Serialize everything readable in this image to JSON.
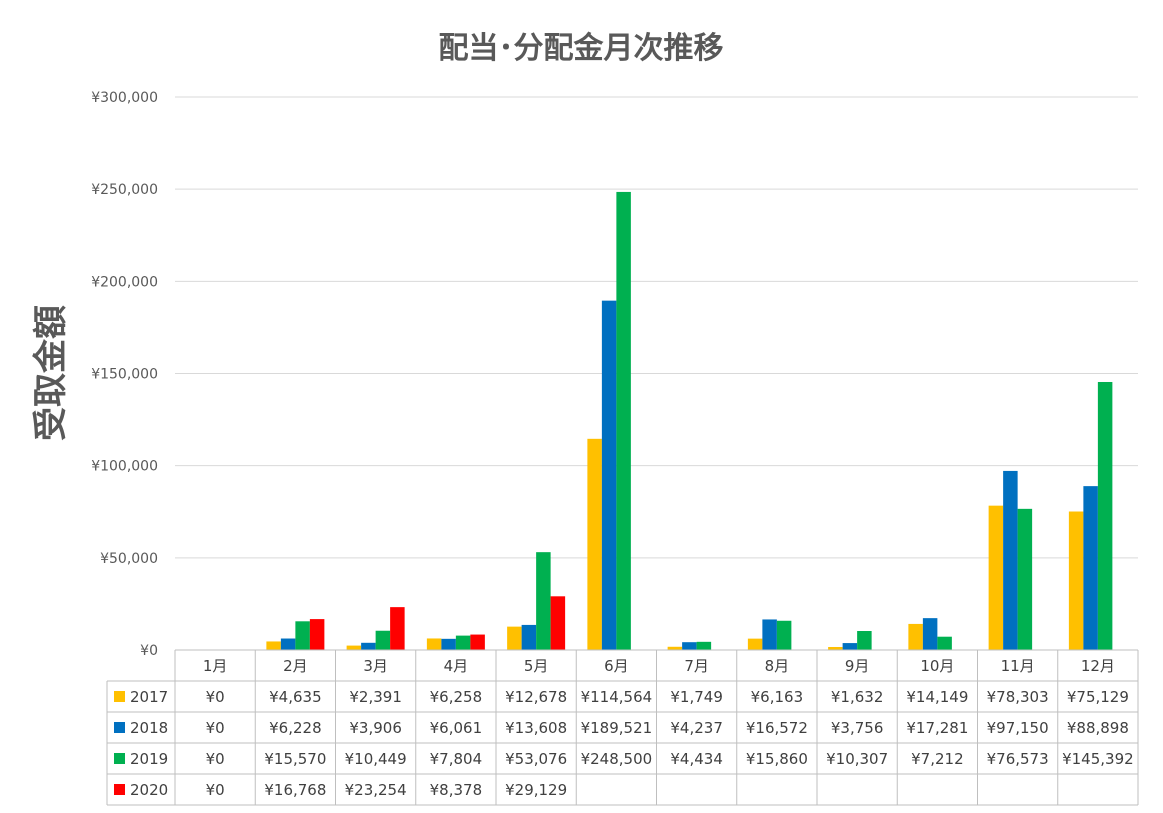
{
  "chart_data": {
    "type": "bar",
    "title": "配当･分配金月次推移",
    "ylabel": "受取金額",
    "xlabel": "",
    "ylim": [
      0,
      300000
    ],
    "yticks": [
      "¥0",
      "¥50,000",
      "¥100,000",
      "¥150,000",
      "¥200,000",
      "¥250,000",
      "¥300,000"
    ],
    "grid": true,
    "legend": "data-table-left",
    "categories": [
      "1月",
      "2月",
      "3月",
      "4月",
      "5月",
      "6月",
      "7月",
      "8月",
      "9月",
      "10月",
      "11月",
      "12月"
    ],
    "series": [
      {
        "name": "2017",
        "color": "#FFC000",
        "values": [
          0,
          4635,
          2391,
          6258,
          12678,
          114564,
          1749,
          6163,
          1632,
          14149,
          78303,
          75129
        ],
        "labels": [
          "¥0",
          "¥4,635",
          "¥2,391",
          "¥6,258",
          "¥12,678",
          "¥114,564",
          "¥1,749",
          "¥6,163",
          "¥1,632",
          "¥14,149",
          "¥78,303",
          "¥75,129"
        ]
      },
      {
        "name": "2018",
        "color": "#0070C0",
        "values": [
          0,
          6228,
          3906,
          6061,
          13608,
          189521,
          4237,
          16572,
          3756,
          17281,
          97150,
          88898
        ],
        "labels": [
          "¥0",
          "¥6,228",
          "¥3,906",
          "¥6,061",
          "¥13,608",
          "¥189,521",
          "¥4,237",
          "¥16,572",
          "¥3,756",
          "¥17,281",
          "¥97,150",
          "¥88,898"
        ]
      },
      {
        "name": "2019",
        "color": "#00B050",
        "values": [
          0,
          15570,
          10449,
          7804,
          53076,
          248500,
          4434,
          15860,
          10307,
          7212,
          76573,
          145392
        ],
        "labels": [
          "¥0",
          "¥15,570",
          "¥10,449",
          "¥7,804",
          "¥53,076",
          "¥248,500",
          "¥4,434",
          "¥15,860",
          "¥10,307",
          "¥7,212",
          "¥76,573",
          "¥145,392"
        ]
      },
      {
        "name": "2020",
        "color": "#FF0000",
        "values": [
          0,
          16768,
          23254,
          8378,
          29129,
          null,
          null,
          null,
          null,
          null,
          null,
          null
        ],
        "labels": [
          "¥0",
          "¥16,768",
          "¥23,254",
          "¥8,378",
          "¥29,129",
          "",
          "",
          "",
          "",
          "",
          "",
          ""
        ]
      }
    ]
  }
}
